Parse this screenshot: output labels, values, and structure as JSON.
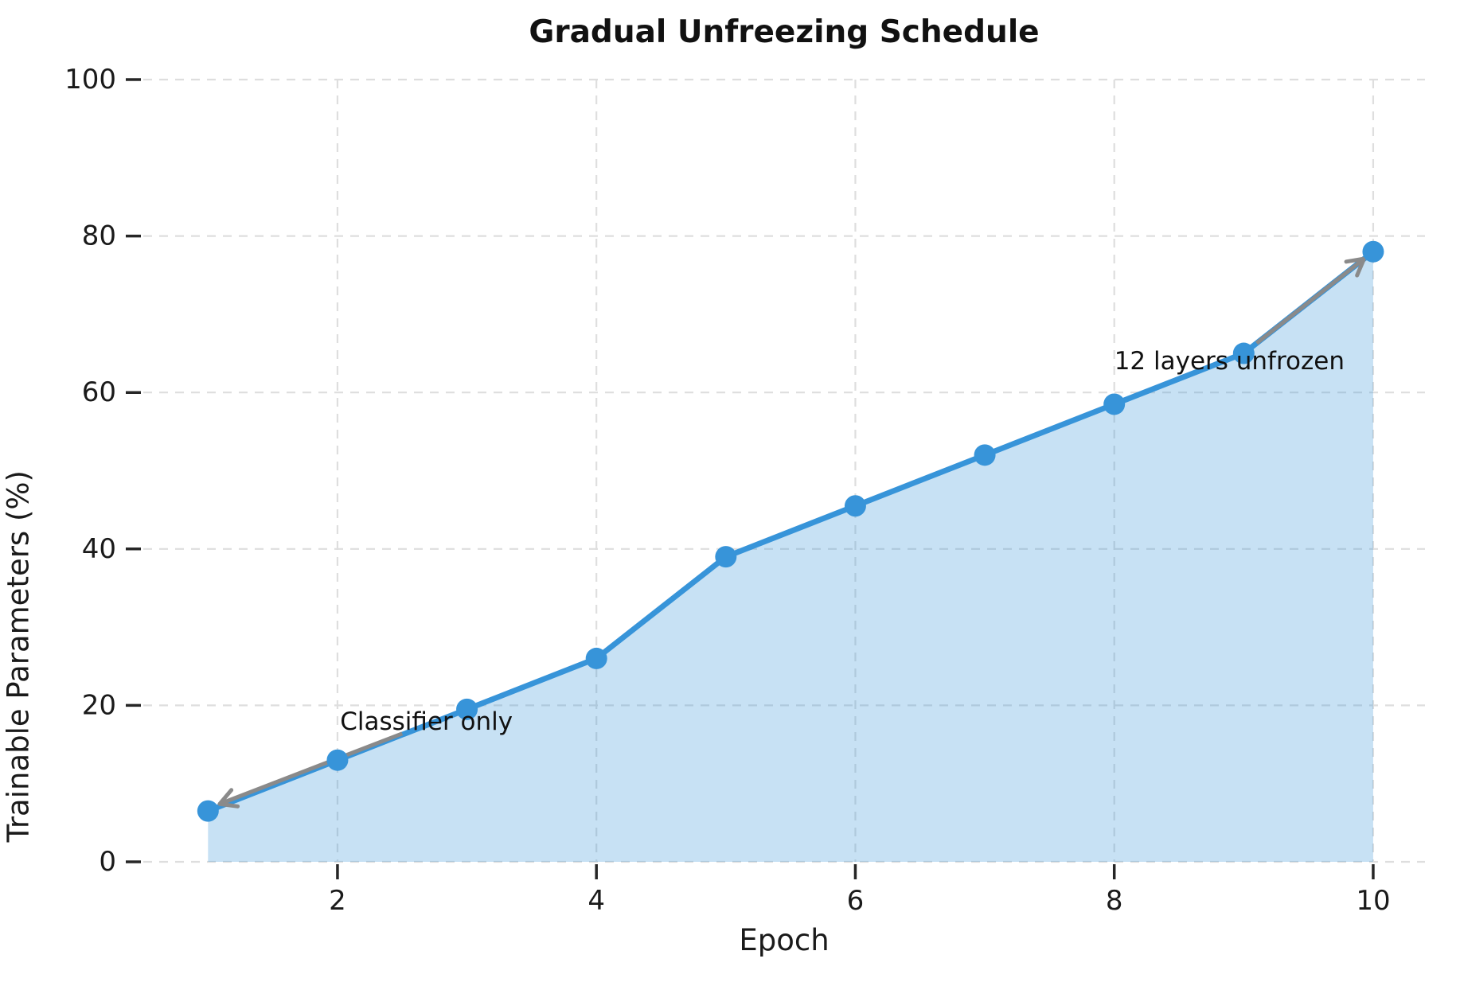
{
  "title": "Gradual Unfreezing Schedule",
  "chart_data": {
    "type": "area",
    "title": "Gradual Unfreezing Schedule",
    "xlabel": "Epoch",
    "ylabel": "Trainable Parameters (%)",
    "x": [
      1,
      2,
      3,
      4,
      5,
      6,
      7,
      8,
      9,
      10
    ],
    "values": [
      6.5,
      13,
      19.5,
      26,
      39,
      45.5,
      52,
      58.5,
      65,
      78
    ],
    "series_name": "Trainable Parameters (%)",
    "xlim": [
      0.5,
      10.4
    ],
    "ylim": [
      0,
      100
    ],
    "x_ticks": [
      2,
      4,
      6,
      8,
      10
    ],
    "y_ticks": [
      0,
      20,
      40,
      60,
      80,
      100
    ],
    "grid": "dashed",
    "legend": "none",
    "annotations": [
      {
        "text": "Classifier only",
        "point": [
          1,
          6.5
        ],
        "text_pos": [
          2.02,
          17.9
        ],
        "arrow_start": [
          2.5,
          16.4
        ],
        "arrow_end": [
          1.09,
          7.4
        ]
      },
      {
        "text": "12 layers unfrozen",
        "point": [
          10,
          78
        ],
        "text_pos": [
          8.0,
          64.0
        ],
        "arrow_start": [
          9.1,
          66.3
        ],
        "arrow_end": [
          9.93,
          77.1
        ]
      }
    ],
    "colors": {
      "line": "#3794d9",
      "marker": "#3794d9",
      "fill": "#3794d9",
      "fill_opacity": 0.28,
      "grid": "#dedede",
      "tick": "#262626",
      "annotation_arrow": "#8a8a8a",
      "text": "#1a1a1a"
    }
  }
}
